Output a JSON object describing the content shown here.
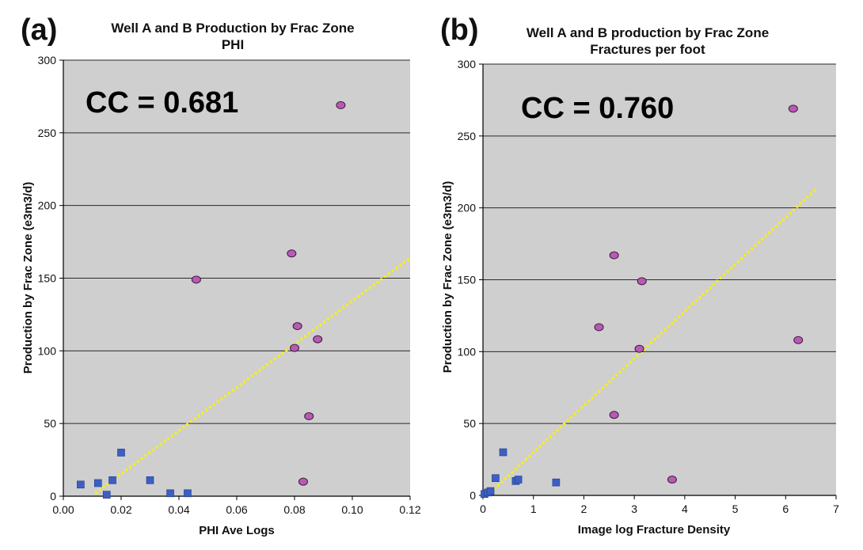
{
  "chart_data": [
    {
      "type": "scatter",
      "panel_label": "(a)",
      "title": "Well A and B Production by Frac Zone",
      "subtitle": "PHI",
      "xlabel": "PHI Ave Logs",
      "ylabel": "Production by Frac Zone (e3m3/d)",
      "xlim": [
        0,
        0.12
      ],
      "ylim": [
        0,
        300
      ],
      "xticks": [
        0,
        0.02,
        0.04,
        0.06,
        0.08,
        0.1,
        0.12
      ],
      "xtick_labels": [
        "0.00",
        "0.02",
        "0.04",
        "0.06",
        "0.08",
        "0.10",
        "0.12"
      ],
      "yticks": [
        0,
        50,
        100,
        150,
        200,
        250,
        300
      ],
      "ytick_labels": [
        "0",
        "50",
        "100",
        "150",
        "200",
        "250",
        "300"
      ],
      "grid": "horizontal",
      "annotation": "CC = 0.681",
      "series": [
        {
          "name": "squares",
          "marker": "square",
          "color": "#3d5fc4",
          "x": [
            0.006,
            0.012,
            0.015,
            0.017,
            0.02,
            0.03,
            0.037,
            0.043
          ],
          "y": [
            8,
            9,
            1,
            11,
            30,
            11,
            2,
            2
          ]
        },
        {
          "name": "circles",
          "marker": "circle",
          "color": "#b85ab4",
          "x": [
            0.046,
            0.079,
            0.08,
            0.081,
            0.083,
            0.085,
            0.088,
            0.096
          ],
          "y": [
            149,
            167,
            102,
            117,
            10,
            55,
            108,
            269
          ]
        }
      ],
      "trendline": {
        "style": "dotted",
        "color": "#f5ee1f",
        "x": [
          0.011,
          0.12
        ],
        "y": [
          2,
          164
        ]
      }
    },
    {
      "type": "scatter",
      "panel_label": "(b)",
      "title": "Well A and B production by Frac Zone",
      "subtitle": "Fractures per foot",
      "xlabel": "Image log Fracture Density",
      "ylabel": "Production by Frac Zone (e3m3/d)",
      "xlim": [
        0,
        7
      ],
      "ylim": [
        0,
        300
      ],
      "xticks": [
        0,
        1,
        2,
        3,
        4,
        5,
        6,
        7
      ],
      "xtick_labels": [
        "0",
        "1",
        "2",
        "3",
        "4",
        "5",
        "6",
        "7"
      ],
      "yticks": [
        0,
        50,
        100,
        150,
        200,
        250,
        300
      ],
      "ytick_labels": [
        "0",
        "50",
        "100",
        "150",
        "200",
        "250",
        "300"
      ],
      "grid": "horizontal",
      "annotation": "CC = 0.760",
      "series": [
        {
          "name": "squares",
          "marker": "square",
          "color": "#3d5fc4",
          "x": [
            0.03,
            0.1,
            0.15,
            0.25,
            0.4,
            0.65,
            0.7,
            1.45
          ],
          "y": [
            1,
            2,
            3,
            12,
            30,
            10,
            11,
            9
          ]
        },
        {
          "name": "circles",
          "marker": "circle",
          "color": "#b85ab4",
          "x": [
            2.3,
            2.6,
            2.6,
            3.1,
            3.15,
            3.75,
            6.15,
            6.25
          ],
          "y": [
            117,
            167,
            56,
            102,
            149,
            11,
            269,
            108
          ]
        }
      ],
      "trendline": {
        "style": "dotted",
        "color": "#f5ee1f",
        "x": [
          0.15,
          6.6
        ],
        "y": [
          2,
          213
        ]
      }
    }
  ]
}
